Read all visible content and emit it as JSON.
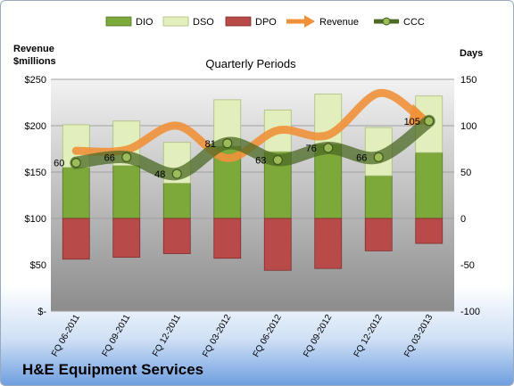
{
  "company": "H&E Equipment Services",
  "chart_data": {
    "type": "bar",
    "title": "Quarterly Periods",
    "left_axis_title": [
      "Revenue",
      "$millions"
    ],
    "right_axis_title": "Days",
    "categories": [
      "FQ 06-2011",
      "FQ 09-2011",
      "FQ 12-2011",
      "FQ 03-2012",
      "FQ 06-2012",
      "FQ 09-2012",
      "FQ 12-2012",
      "FQ 03-2013"
    ],
    "left_ticks": [
      "$-",
      "$50",
      "$100",
      "$150",
      "$200",
      "$250"
    ],
    "right_ticks": [
      "-100",
      "-50",
      "0",
      "50",
      "100",
      "150"
    ],
    "left_range": [
      0,
      250
    ],
    "right_range": [
      -100,
      150
    ],
    "legend_position": "top",
    "series": [
      {
        "name": "DIO",
        "axis": "right",
        "kind": "bar",
        "color": "#7da83a",
        "values": [
          55,
          57,
          38,
          78,
          72,
          80,
          46,
          71
        ]
      },
      {
        "name": "DSO",
        "axis": "right",
        "kind": "bar",
        "color": "#e2efbd",
        "values": [
          46,
          48,
          44,
          50,
          45,
          54,
          52,
          61
        ]
      },
      {
        "name": "DPO",
        "axis": "right",
        "kind": "bar",
        "color": "#b84a4a",
        "values": [
          -44,
          -42,
          -38,
          -43,
          -56,
          -54,
          -35,
          -27
        ]
      },
      {
        "name": "Revenue",
        "axis": "left",
        "kind": "line",
        "color": "#f0913a",
        "values": [
          173,
          174,
          200,
          165,
          195,
          190,
          235,
          205
        ]
      },
      {
        "name": "CCC",
        "axis": "right",
        "kind": "line",
        "color": "#5d7a2e",
        "values": [
          60,
          66,
          48,
          81,
          63,
          76,
          66,
          105
        ],
        "labels": [
          "60",
          "66",
          "48",
          "81",
          "63",
          "76",
          "66",
          "105"
        ]
      }
    ]
  }
}
